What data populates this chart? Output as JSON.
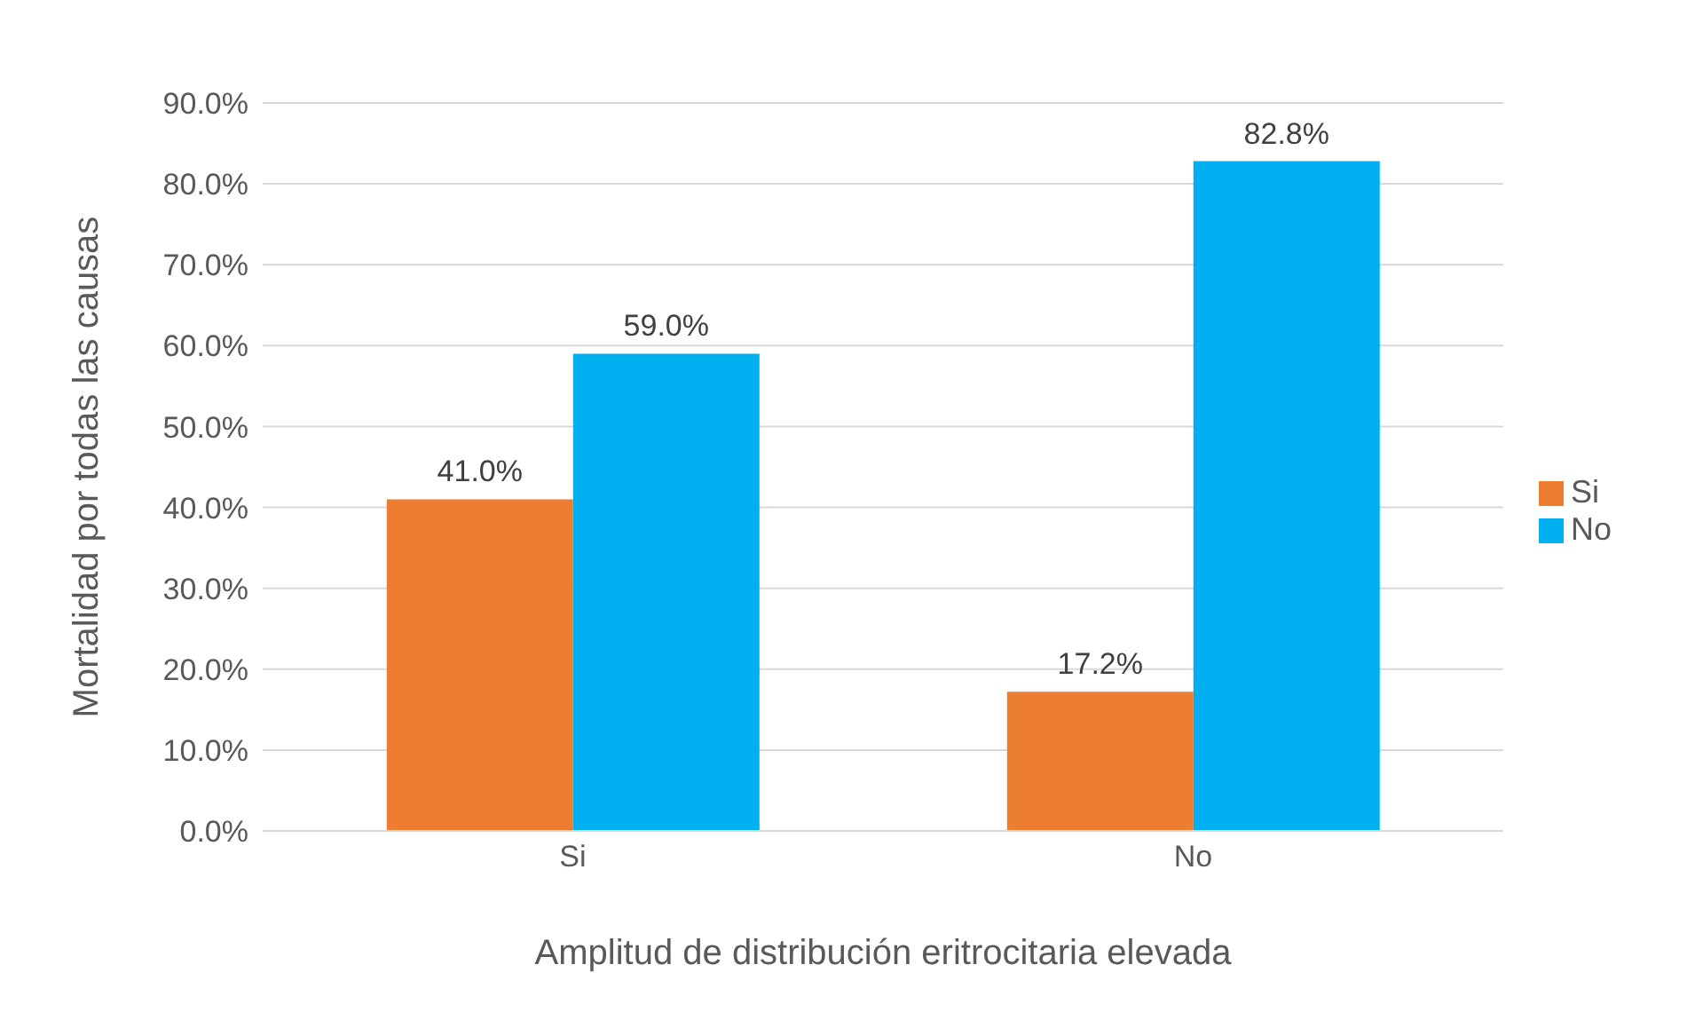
{
  "chart_data": {
    "type": "bar",
    "xlabel": "Amplitud de distribución eritrocitaria elevada",
    "ylabel": "Mortalidad por todas las causas",
    "categories": [
      "Si",
      "No"
    ],
    "series": [
      {
        "name": "Si",
        "color": "#ed7d31",
        "values": [
          41.0,
          17.2
        ],
        "value_labels": [
          "41.0%",
          "17.2%"
        ]
      },
      {
        "name": "No",
        "color": "#00b0f0",
        "values": [
          59.0,
          82.8
        ],
        "value_labels": [
          "59.0%",
          "82.8%"
        ]
      }
    ],
    "ylim": [
      0,
      90
    ],
    "yticks": [
      {
        "value": 0,
        "label": "0.0%"
      },
      {
        "value": 10,
        "label": "10.0%"
      },
      {
        "value": 20,
        "label": "20.0%"
      },
      {
        "value": 30,
        "label": "30.0%"
      },
      {
        "value": 40,
        "label": "40.0%"
      },
      {
        "value": 50,
        "label": "50.0%"
      },
      {
        "value": 60,
        "label": "60.0%"
      },
      {
        "value": 70,
        "label": "70.0%"
      },
      {
        "value": 80,
        "label": "80.0%"
      },
      {
        "value": 90,
        "label": "90.0%"
      }
    ],
    "grid": "y",
    "legend": "right"
  }
}
